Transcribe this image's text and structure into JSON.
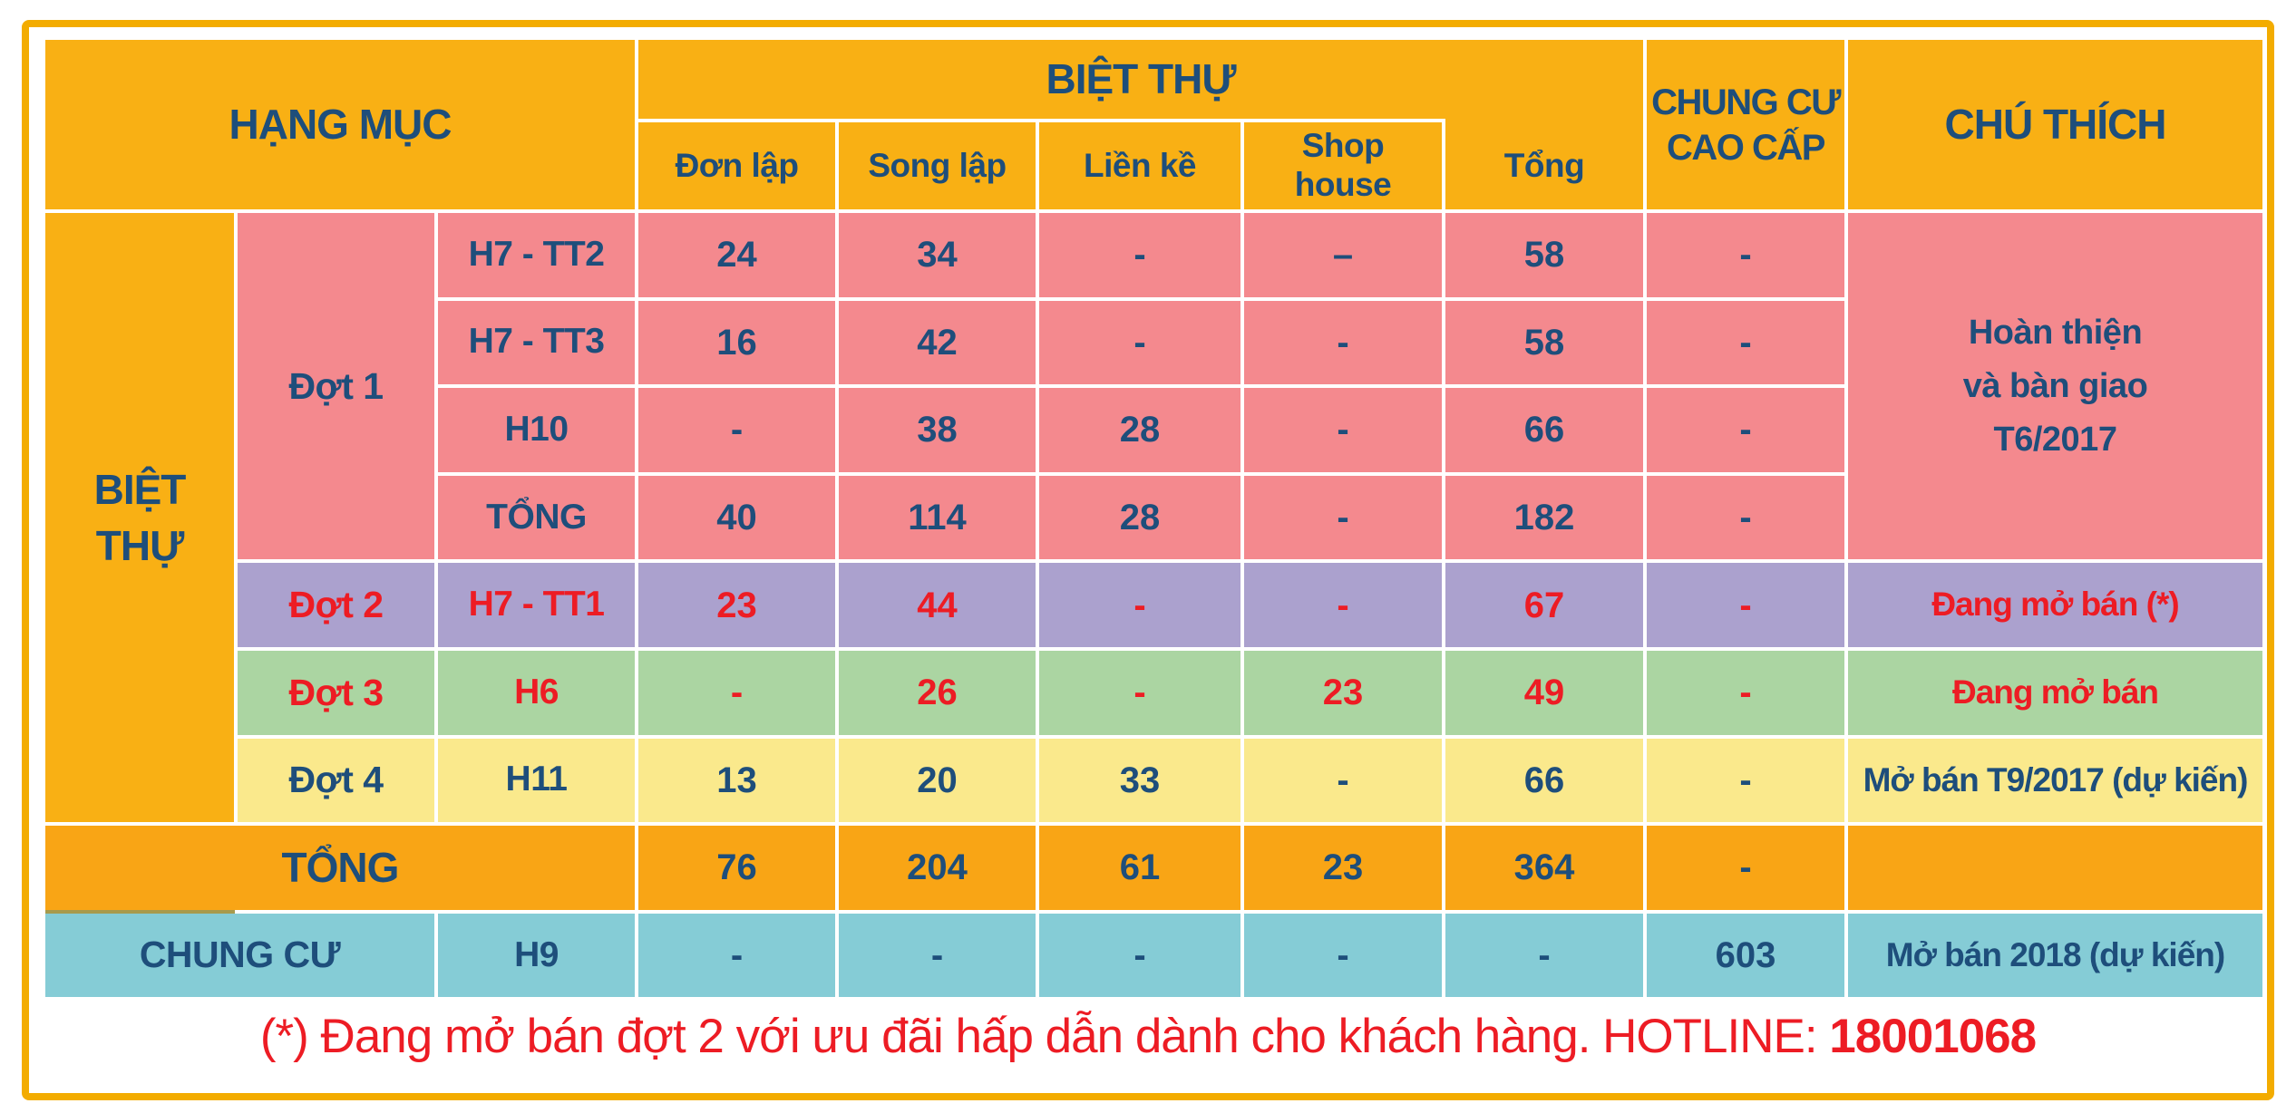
{
  "colors": {
    "frame_orange": "#F3AC00",
    "header_amber": "#F9B014",
    "total_row_amber": "#F9A515",
    "dot1_pink": "#F4898E",
    "dot2_purple": "#ABA1CE",
    "dot3_green": "#ABD5A2",
    "dot4_yellow": "#FAE98C",
    "chungcu_teal": "#85CCD6",
    "text_blue": "#1E4E7B",
    "text_red": "#ED1C24"
  },
  "header": {
    "hang_muc": "HẠNG MỤC",
    "biet_thu": "BIỆT THỰ",
    "don_lap": "Đơn lập",
    "song_lap": "Song lập",
    "lien_ke": "Liền kề",
    "shop_l1": "Shop",
    "shop_l2": "house",
    "tong": "Tổng",
    "chung_cu_l1": "CHUNG CƯ",
    "chung_cu_l2": "CAO CẤP",
    "chu_thich": "CHÚ THÍCH"
  },
  "groups": {
    "biet_thu_l1": "BIỆT",
    "biet_thu_l2": "THỰ",
    "dot1": "Đợt 1",
    "dot2": "Đợt 2",
    "dot3": "Đợt 3",
    "dot4": "Đợt 4"
  },
  "rows": {
    "h7tt2": {
      "item": "H7 - TT2",
      "don_lap": "24",
      "song_lap": "34",
      "lien_ke": "-",
      "shop_house": "–",
      "tong": "58",
      "chung_cu": "-"
    },
    "h7tt3": {
      "item": "H7 - TT3",
      "don_lap": "16",
      "song_lap": "42",
      "lien_ke": "-",
      "shop_house": "-",
      "tong": "58",
      "chung_cu": "-"
    },
    "h10": {
      "item": "H10",
      "don_lap": "-",
      "song_lap": "38",
      "lien_ke": "28",
      "shop_house": "-",
      "tong": "66",
      "chung_cu": "-"
    },
    "dot1_tong": {
      "item": "TỔNG",
      "don_lap": "40",
      "song_lap": "114",
      "lien_ke": "28",
      "shop_house": "-",
      "tong": "182",
      "chung_cu": "-"
    },
    "dot2": {
      "item": "H7 - TT1",
      "don_lap": "23",
      "song_lap": "44",
      "lien_ke": "-",
      "shop_house": "-",
      "tong": "67",
      "chung_cu": "-",
      "note": "Đang mở bán (*)"
    },
    "dot3": {
      "item": "H6",
      "don_lap": "-",
      "song_lap": "26",
      "lien_ke": "-",
      "shop_house": "23",
      "tong": "49",
      "chung_cu": "-",
      "note": "Đang mở bán"
    },
    "dot4": {
      "item": "H11",
      "don_lap": "13",
      "song_lap": "20",
      "lien_ke": "33",
      "shop_house": "-",
      "tong": "66",
      "chung_cu": "-",
      "note": "Mở bán T9/2017 (dự kiến)"
    },
    "grand_tong": {
      "label": "TỔNG",
      "don_lap": "76",
      "song_lap": "204",
      "lien_ke": "61",
      "shop_house": "23",
      "tong": "364",
      "chung_cu": "-",
      "note": ""
    },
    "chung_cu": {
      "label": "CHUNG CƯ",
      "item": "H9",
      "don_lap": "-",
      "song_lap": "-",
      "lien_ke": "-",
      "shop_house": "-",
      "tong": "-",
      "chung_cu": "603",
      "note": "Mở bán 2018 (dự kiến)"
    }
  },
  "notes": {
    "dot1_l1": "Hoàn thiện",
    "dot1_l2": "và bàn giao",
    "dot1_l3": "T6/2017",
    "dot1_full": "Hoàn thiện và bàn giao T6/2017"
  },
  "footer": {
    "text": "(*) Đang mở bán đợt 2 với ưu đãi hấp dẫn dành cho khách hàng. HOTLINE: ",
    "hotline": "18001068"
  },
  "chart_data": {
    "type": "table",
    "title": "Bảng hạng mục mở bán biệt thự và chung cư",
    "columns": [
      "Hạng mục (nhóm)",
      "Đợt",
      "Hạng mục",
      "Đơn lập",
      "Song lập",
      "Liền kề",
      "Shop house",
      "Tổng",
      "Chung cư cao cấp",
      "Chú thích"
    ],
    "rows": [
      [
        "BIỆT THỰ",
        "Đợt 1",
        "H7 - TT2",
        "24",
        "34",
        "-",
        "–",
        "58",
        "-",
        "Hoàn thiện và bàn giao T6/2017"
      ],
      [
        "BIỆT THỰ",
        "Đợt 1",
        "H7 - TT3",
        "16",
        "42",
        "-",
        "-",
        "58",
        "-",
        "Hoàn thiện và bàn giao T6/2017"
      ],
      [
        "BIỆT THỰ",
        "Đợt 1",
        "H10",
        "-",
        "38",
        "28",
        "-",
        "66",
        "-",
        "Hoàn thiện và bàn giao T6/2017"
      ],
      [
        "BIỆT THỰ",
        "Đợt 1",
        "TỔNG",
        "40",
        "114",
        "28",
        "-",
        "182",
        "-",
        "Hoàn thiện và bàn giao T6/2017"
      ],
      [
        "BIỆT THỰ",
        "Đợt 2",
        "H7 - TT1",
        "23",
        "44",
        "-",
        "-",
        "67",
        "-",
        "Đang mở bán (*)"
      ],
      [
        "BIỆT THỰ",
        "Đợt 3",
        "H6",
        "-",
        "26",
        "-",
        "23",
        "49",
        "-",
        "Đang mở bán"
      ],
      [
        "BIỆT THỰ",
        "Đợt 4",
        "H11",
        "13",
        "20",
        "33",
        "-",
        "66",
        "-",
        "Mở bán T9/2017 (dự kiến)"
      ],
      [
        "TỔNG",
        "",
        "",
        "76",
        "204",
        "61",
        "23",
        "364",
        "-",
        ""
      ],
      [
        "CHUNG CƯ",
        "",
        "H9",
        "-",
        "-",
        "-",
        "-",
        "-",
        "603",
        "Mở bán 2018 (dự kiến)"
      ]
    ],
    "footnote": "(*) Đang mở bán đợt 2 với ưu đãi hấp dẫn dành cho khách hàng. HOTLINE: 18001068"
  }
}
